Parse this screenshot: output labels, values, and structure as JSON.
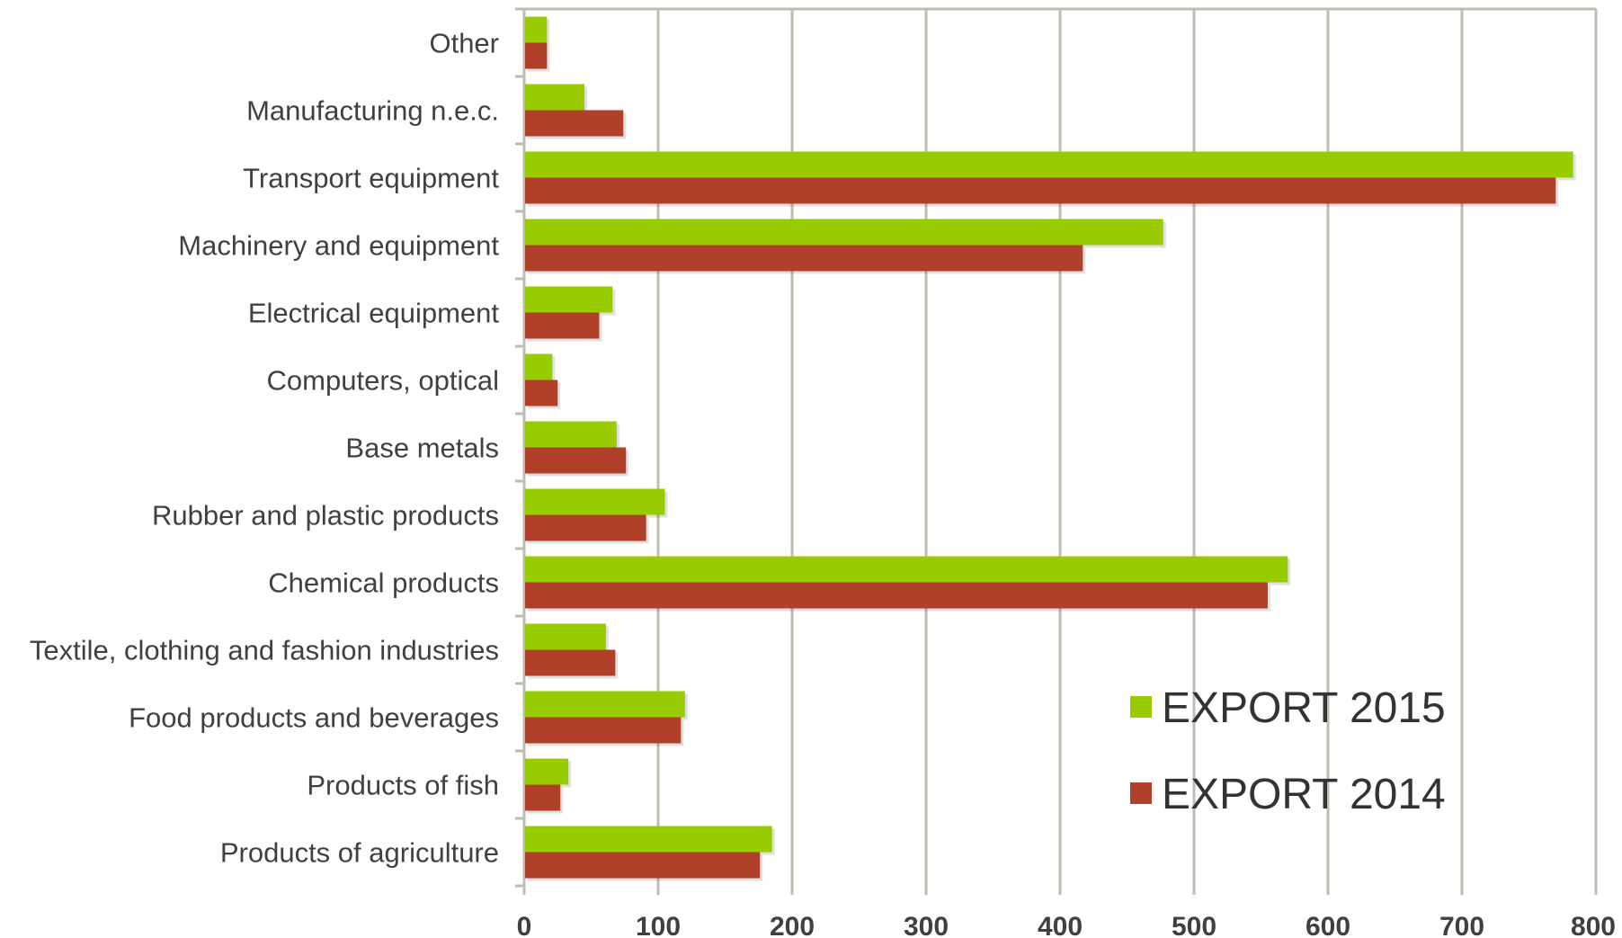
{
  "chart_data": {
    "type": "bar",
    "orientation": "horizontal",
    "categories": [
      "Other",
      "Manufacturing n.e.c.",
      "Transport equipment",
      "Machinery and equipment",
      "Electrical equipment",
      "Computers, optical",
      "Base metals",
      "Rubber and plastic products",
      "Chemical products",
      "Textile, clothing and fashion industries",
      "Food products and beverages",
      "Products of fish",
      "Products of agriculture"
    ],
    "series": [
      {
        "name": "EXPORT 2015",
        "color": "#99cc00",
        "values": [
          17,
          45,
          783,
          477,
          66,
          21,
          69,
          105,
          570,
          61,
          120,
          33,
          185
        ]
      },
      {
        "name": "EXPORT 2014",
        "color": "#b0402a",
        "values": [
          17,
          74,
          770,
          417,
          56,
          25,
          76,
          91,
          555,
          68,
          117,
          27,
          176
        ]
      }
    ],
    "xlim": [
      0,
      800
    ],
    "xticks": [
      "0",
      "100",
      "200",
      "300",
      "400",
      "500",
      "600",
      "700",
      "800"
    ],
    "grid": true,
    "legend_position": "bottom-right"
  }
}
